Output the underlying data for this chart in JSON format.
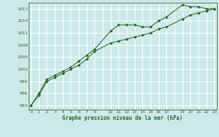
{
  "background_color": "#cde8e8",
  "grid_color": "#b0d8d8",
  "line_color": "#2d6a2d",
  "marker_color": "#2d6a2d",
  "title": "Graphe pression niveau de la mer (hPa)",
  "ylim": [
    992.0,
    1018.5
  ],
  "xlim": [
    -0.3,
    23.3
  ],
  "yticks": [
    993,
    996,
    999,
    1002,
    1005,
    1008,
    1011,
    1014,
    1017
  ],
  "xtick_positions": [
    0,
    1,
    2,
    3,
    4,
    5,
    6,
    7,
    8,
    10,
    11,
    12,
    13,
    14,
    15,
    16,
    17,
    19,
    20,
    21,
    22,
    23
  ],
  "series1_x": [
    0,
    1,
    2,
    3,
    4,
    5,
    6,
    7,
    8,
    10,
    11,
    12,
    13,
    14,
    15,
    16,
    17,
    19,
    20,
    21,
    22,
    23
  ],
  "series1_y": [
    993,
    996,
    999.5,
    1000.5,
    1001.5,
    1002.5,
    1004,
    1005.5,
    1007,
    1011.5,
    1013,
    1013,
    1013,
    1012.5,
    1012.5,
    1014,
    1015,
    1018,
    1017.5,
    1017.5,
    1017,
    1017
  ],
  "series2_x": [
    0,
    1,
    2,
    3,
    4,
    5,
    6,
    7,
    8,
    10,
    11,
    12,
    13,
    14,
    15,
    16,
    17,
    19,
    20,
    21,
    22,
    23
  ],
  "series2_y": [
    993,
    995.5,
    999,
    1000,
    1001,
    1002,
    1003,
    1004.5,
    1006.5,
    1008.5,
    1009,
    1009.5,
    1010,
    1010.5,
    1011,
    1012,
    1012.5,
    1014.5,
    1015.5,
    1016,
    1016.5,
    1017
  ]
}
